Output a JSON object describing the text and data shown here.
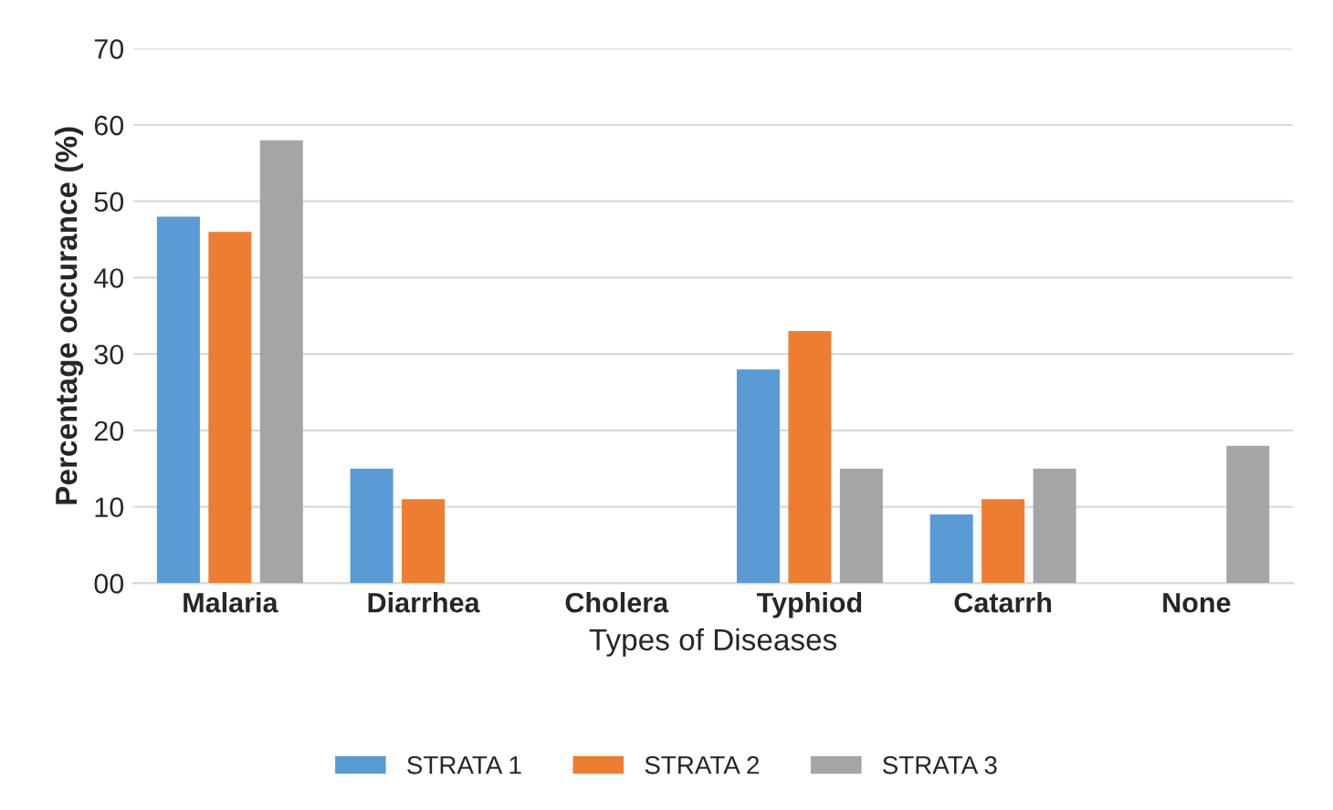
{
  "chart_data": {
    "type": "bar",
    "xlabel": "Types of Diseases",
    "ylabel": "Percentage occurance (%)",
    "categories": [
      "Malaria",
      "Diarrhea",
      "Cholera",
      "Typhiod",
      "Catarrh",
      "None"
    ],
    "series": [
      {
        "name": "STRATA 1",
        "color": "#5b9bd5",
        "values": [
          48,
          15,
          null,
          28,
          9,
          null
        ]
      },
      {
        "name": "STRATA 2",
        "color": "#ed7d31",
        "values": [
          46,
          11,
          null,
          33,
          11,
          null
        ]
      },
      {
        "name": "STRATA 3",
        "color": "#a5a5a5",
        "values": [
          58,
          null,
          null,
          15,
          15,
          18
        ]
      }
    ],
    "ylim": [
      0,
      70
    ],
    "yticks": [
      {
        "value": 0,
        "label": "00"
      },
      10,
      20,
      30,
      40,
      50,
      60,
      70
    ],
    "grid": "y",
    "legend": "bottom"
  }
}
